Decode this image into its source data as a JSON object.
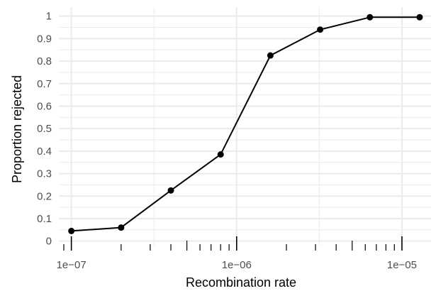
{
  "chart_data": {
    "type": "line",
    "xlabel": "Recombination rate",
    "ylabel": "Proportion rejected",
    "x_scale": "log10",
    "xlim": [
      8.4e-08,
      1.5e-05
    ],
    "ylim": [
      -0.02,
      1.04
    ],
    "grid": true,
    "x_ticks": [
      1e-07,
      1e-06,
      1e-05
    ],
    "x_tick_labels": [
      "1e−07",
      "1e−06",
      "1e−05"
    ],
    "y_ticks": [
      0,
      0.1,
      0.2,
      0.3,
      0.4,
      0.5,
      0.6,
      0.7,
      0.8,
      0.9,
      1
    ],
    "y_tick_labels": [
      "0",
      "0.1",
      "0.2",
      "0.3",
      "0.4",
      "0.5",
      "0.6",
      "0.7",
      "0.8",
      "0.9",
      "1"
    ],
    "series": [
      {
        "x": [
          1e-07,
          2e-07,
          4e-07,
          8e-07,
          1.6e-06,
          3.2e-06,
          6.4e-06,
          1.28e-05
        ],
        "y": [
          0.045,
          0.06,
          0.225,
          0.385,
          0.825,
          0.94,
          0.995,
          0.995
        ]
      }
    ],
    "colors": {
      "line": "#000000",
      "grid": "#ebebeb",
      "rug": "#000000"
    }
  }
}
